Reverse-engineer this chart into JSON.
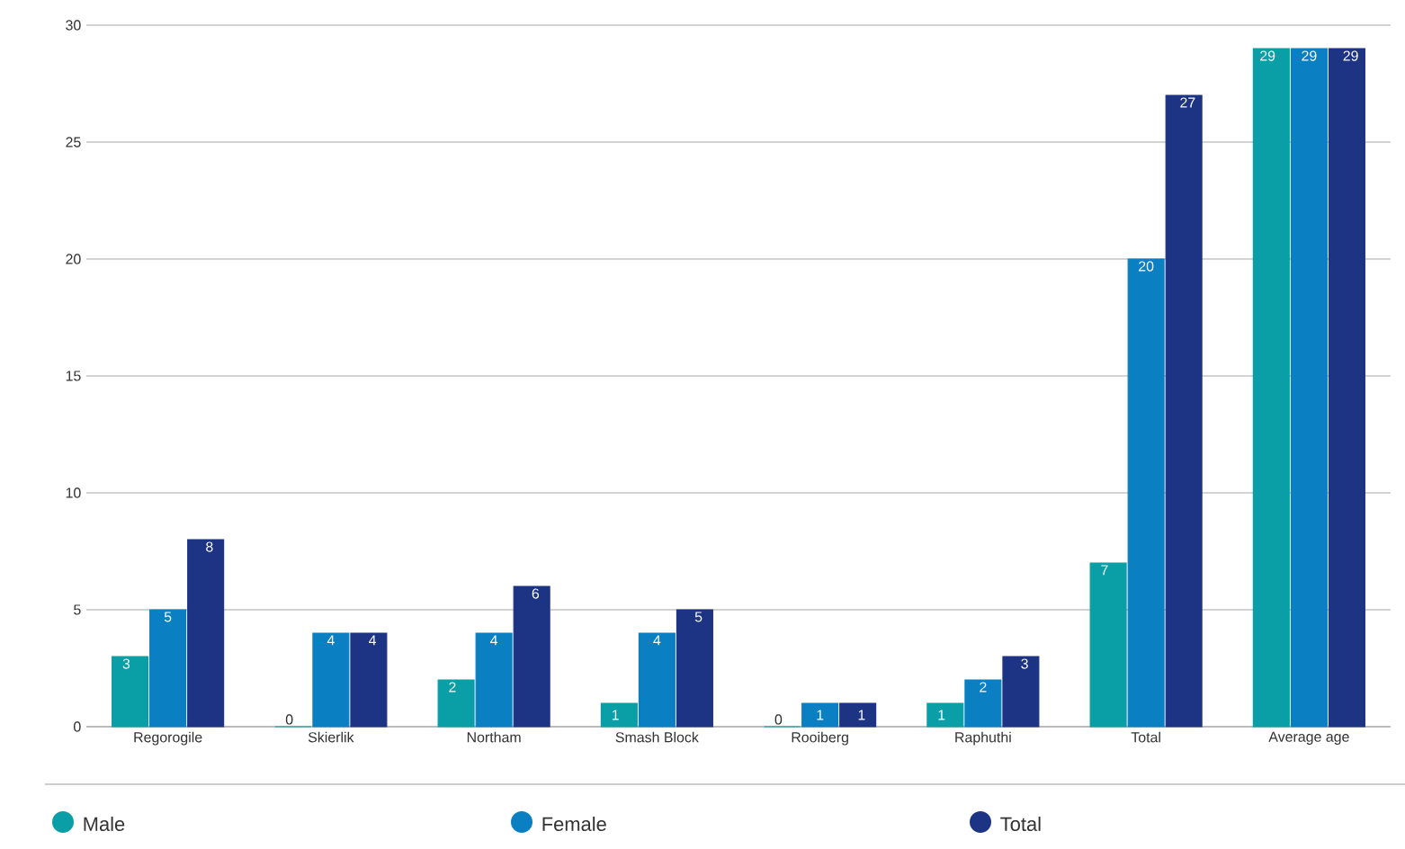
{
  "chart_data": {
    "type": "bar",
    "categories": [
      "Regorogile",
      "Skierlik",
      "Northam",
      "Smash Block",
      "Rooiberg",
      "Raphuthi",
      "Total",
      "Average age"
    ],
    "series": [
      {
        "name": "Male",
        "color": "#0a9ea6",
        "values": [
          3,
          0,
          2,
          1,
          0,
          1,
          7,
          29
        ]
      },
      {
        "name": "Female",
        "color": "#0a7fc2",
        "values": [
          5,
          4,
          4,
          4,
          1,
          2,
          20,
          29
        ]
      },
      {
        "name": "Total",
        "color": "#1d3383",
        "values": [
          8,
          4,
          6,
          5,
          1,
          3,
          27,
          29
        ]
      }
    ],
    "ylim": [
      0,
      30
    ],
    "yticks": [
      0,
      5,
      10,
      15,
      20,
      25,
      30
    ],
    "grid": "y",
    "legend": "bottom",
    "data_labels": true
  }
}
